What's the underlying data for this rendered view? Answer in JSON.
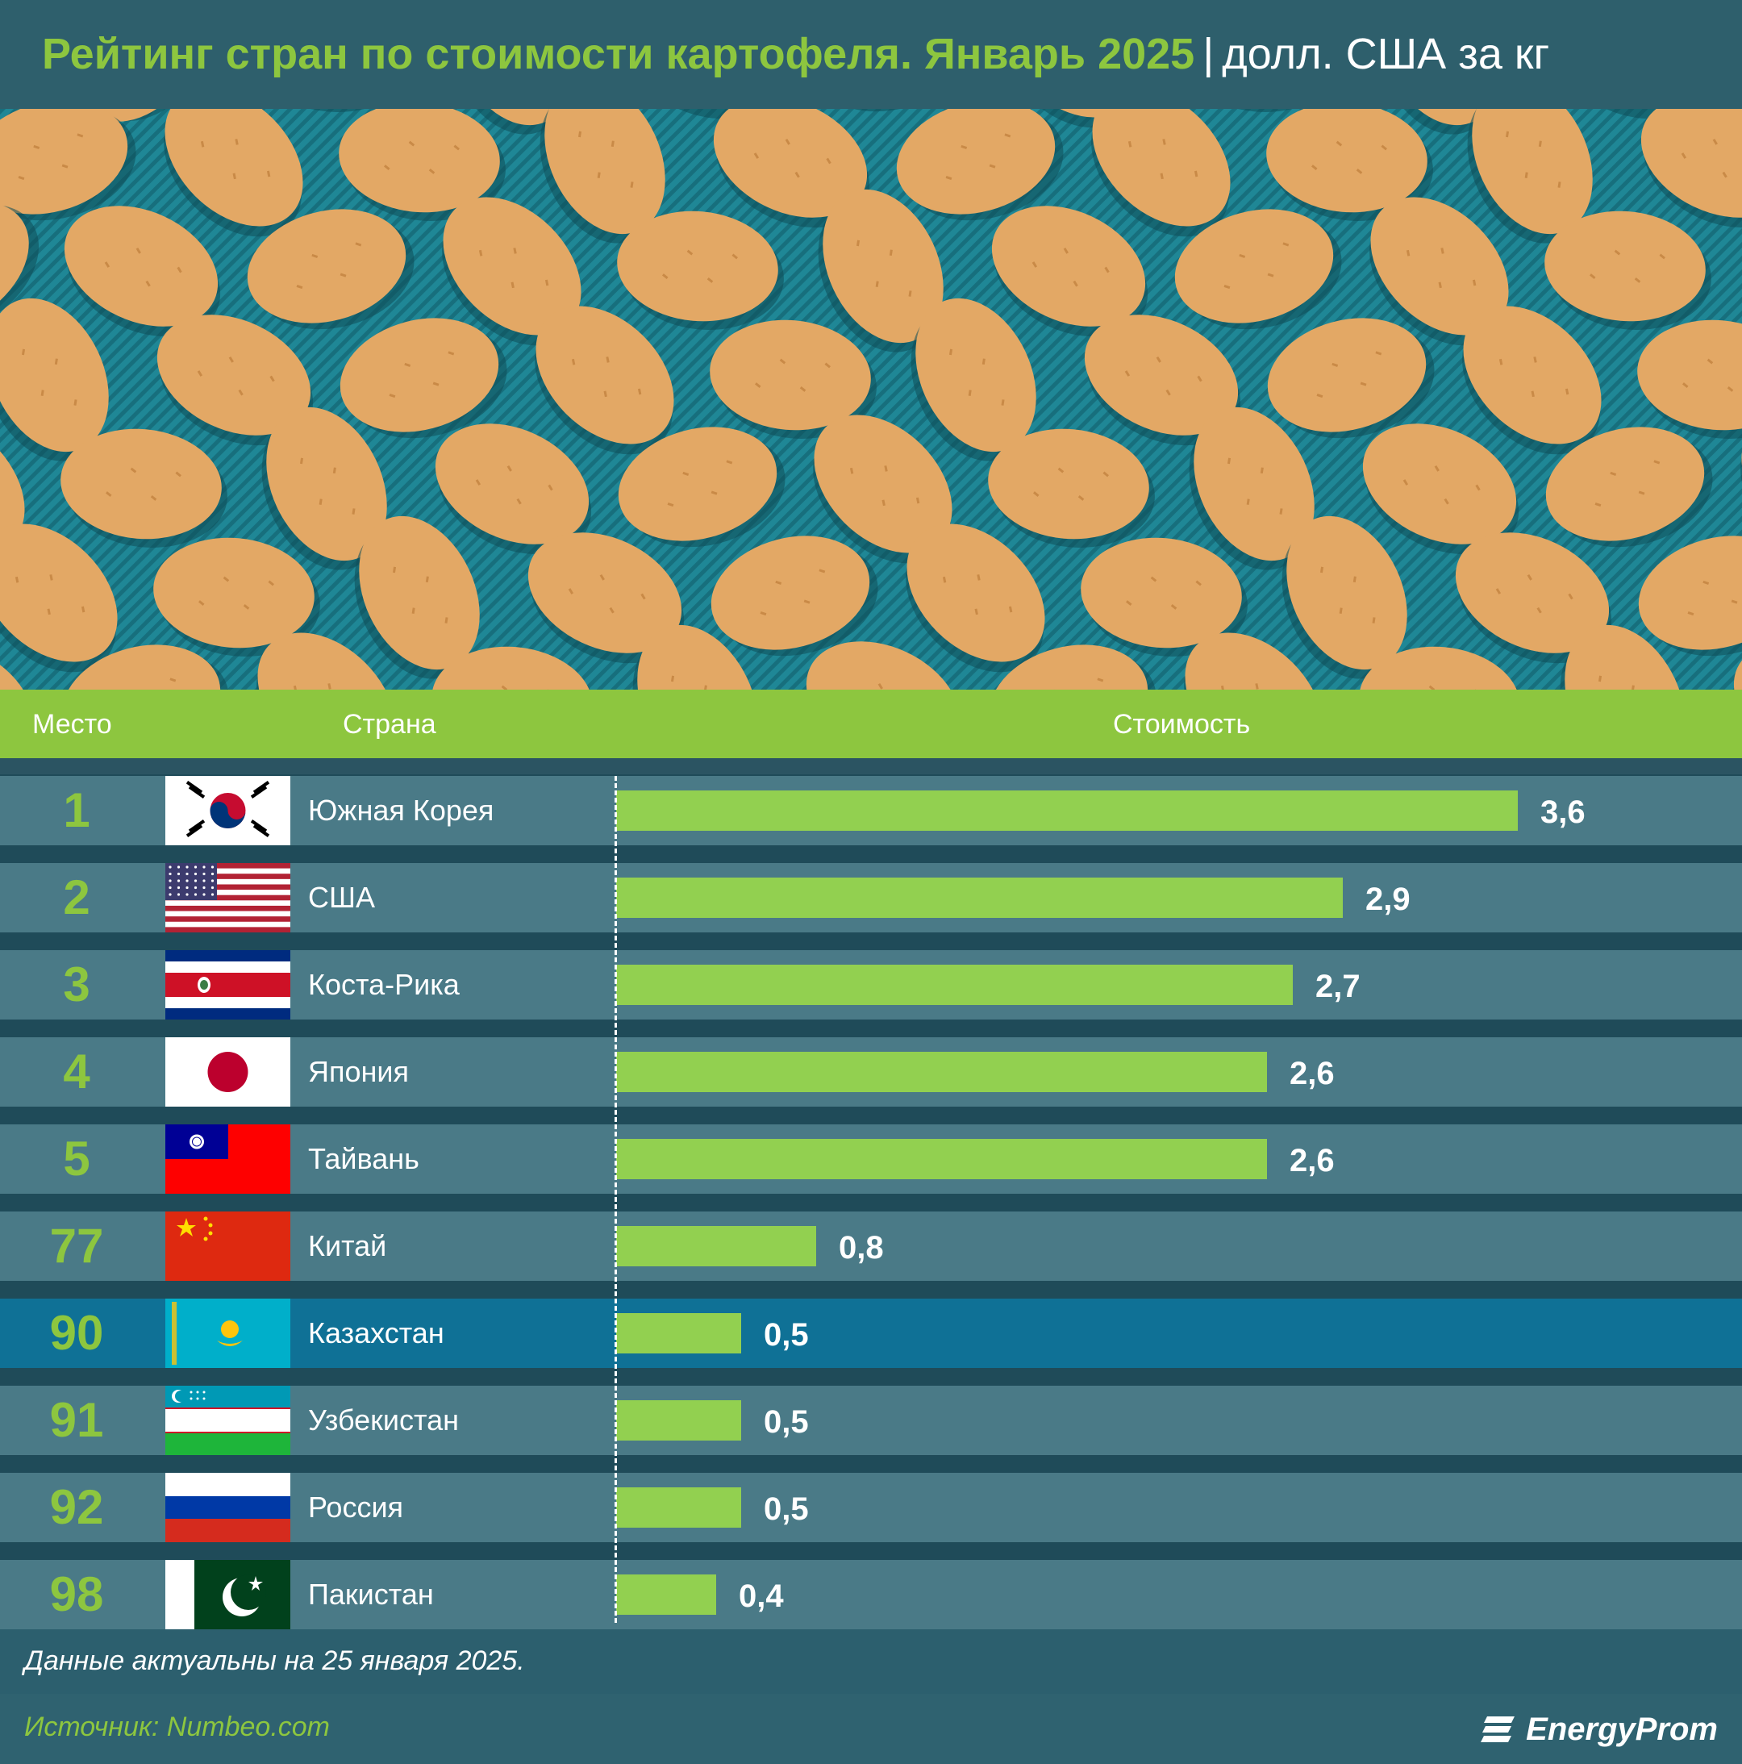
{
  "title": {
    "main": "Рейтинг стран по стоимости картофеля. Январь 2025",
    "separator": "|",
    "unit": "долл. США за кг"
  },
  "table": {
    "col_rank": "Место",
    "col_country": "Страна",
    "col_cost": "Стоимость"
  },
  "chart_data": {
    "type": "bar",
    "title": "Рейтинг стран по стоимости картофеля. Январь 2025",
    "unit": "долл. США за кг",
    "ranks": [
      "1",
      "2",
      "3",
      "4",
      "5",
      "77",
      "90",
      "91",
      "92",
      "98"
    ],
    "categories": [
      "Южная Корея",
      "США",
      "Коста-Рика",
      "Япония",
      "Тайвань",
      "Китай",
      "Казахстан",
      "Узбекистан",
      "Россия",
      "Пакистан"
    ],
    "values": [
      3.6,
      2.9,
      2.7,
      2.6,
      2.6,
      0.8,
      0.5,
      0.5,
      0.5,
      0.4
    ],
    "value_labels": [
      "3,6",
      "2,9",
      "2,7",
      "2,6",
      "2,6",
      "0,8",
      "0,5",
      "0,5",
      "0,5",
      "0,4"
    ],
    "flags": [
      "south-korea-flag",
      "usa-flag",
      "costa-rica-flag",
      "japan-flag",
      "taiwan-flag",
      "china-flag",
      "kazakhstan-flag",
      "uzbekistan-flag",
      "russia-flag",
      "pakistan-flag"
    ],
    "highlight": "Казахстан",
    "bar_color": "#92d050",
    "highlight_row_color": "#0f7196"
  },
  "note": "Данные актуальны на 25 января 2025.",
  "source": "Источник: Numbeo.com",
  "logo": "EnergyProm",
  "colors": {
    "accent_green": "#8dc63f",
    "background": "#2c5f6e",
    "potato": "#e3a865",
    "pattern": "#1d8a99"
  }
}
